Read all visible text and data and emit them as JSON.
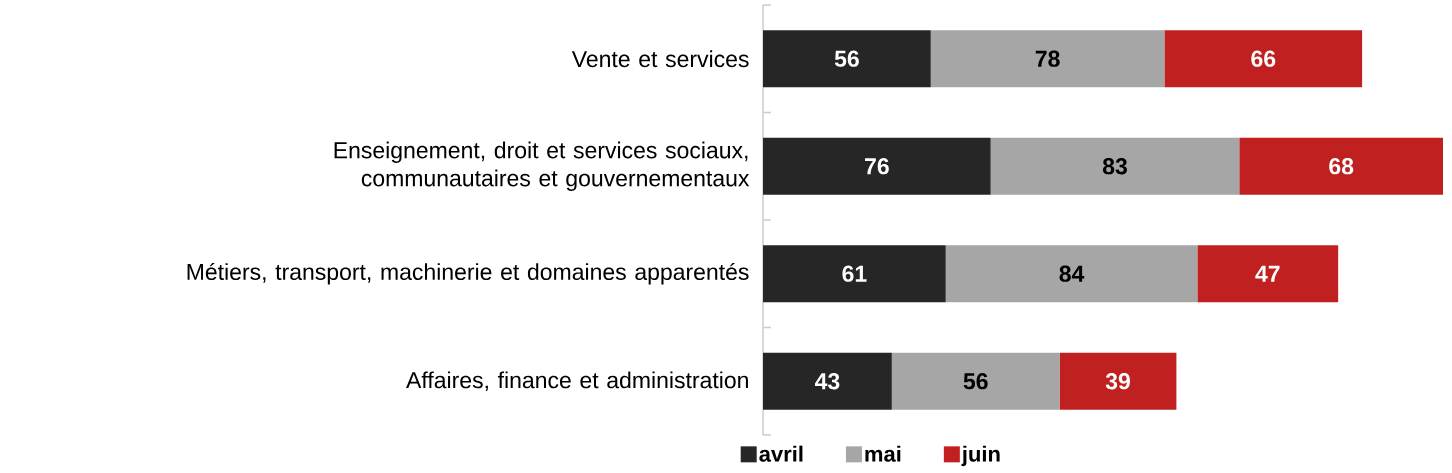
{
  "chart_data": {
    "type": "bar",
    "orientation": "horizontal",
    "stacked": true,
    "data_labels": true,
    "legend": "bottom",
    "categories": [
      "Vente et services",
      "Enseignement, droit et services sociaux, communautaires et gouvernementaux",
      "Métiers, transport, machinerie et domaines apparentés",
      "Affaires, finance et administration"
    ],
    "series": [
      {
        "name": "avril",
        "color": "#262626",
        "values": [
          56,
          76,
          61,
          43
        ]
      },
      {
        "name": "mai",
        "color": "#a6a6a6",
        "values": [
          78,
          83,
          84,
          56
        ]
      },
      {
        "name": "juin",
        "color": "#c0201f",
        "values": [
          66,
          68,
          47,
          39
        ]
      }
    ]
  }
}
